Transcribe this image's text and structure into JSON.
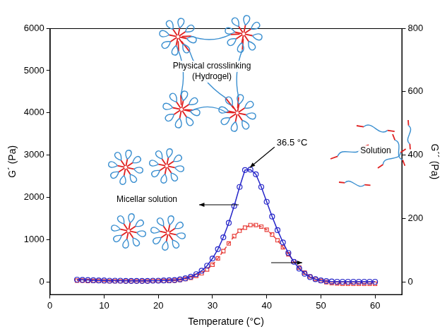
{
  "chart_data": {
    "type": "line",
    "x_label": "Temperature (°C)",
    "y_label": "G´ (Pa)",
    "y2_label": "G´´ (Pa)",
    "x": [
      5,
      6,
      7,
      8,
      9,
      10,
      11,
      12,
      13,
      14,
      15,
      16,
      17,
      18,
      19,
      20,
      21,
      22,
      23,
      24,
      25,
      26,
      27,
      28,
      29,
      30,
      31,
      32,
      33,
      34,
      35,
      36,
      37,
      38,
      39,
      40,
      41,
      42,
      43,
      44,
      45,
      46,
      47,
      48,
      49,
      50,
      51,
      52,
      53,
      54,
      55,
      56,
      57,
      58,
      59,
      60
    ],
    "xlim": [
      0,
      65
    ],
    "xticks": [
      0,
      10,
      20,
      30,
      40,
      50,
      60
    ],
    "ylim": [
      -300,
      6000
    ],
    "yticks": [
      0,
      1000,
      2000,
      3000,
      4000,
      5000,
      6000
    ],
    "y2lim": [
      -40,
      800
    ],
    "y2ticks": [
      0,
      200,
      400,
      600,
      800
    ],
    "grid": false,
    "series": [
      {
        "color": "#2626c9",
        "marker": "circle",
        "line_style": "solid",
        "values": [
          60,
          55,
          50,
          45,
          40,
          40,
          35,
          35,
          35,
          30,
          30,
          30,
          30,
          30,
          35,
          35,
          40,
          45,
          50,
          65,
          90,
          130,
          190,
          270,
          390,
          560,
          780,
          1060,
          1400,
          1800,
          2250,
          2650,
          2660,
          2550,
          2250,
          1900,
          1550,
          1230,
          940,
          690,
          480,
          320,
          200,
          120,
          70,
          40,
          25,
          15,
          10,
          10,
          10,
          10,
          10,
          10,
          10,
          10
        ]
      },
      {
        "axis": "y2",
        "color": "#e8413c",
        "marker": "square",
        "line_style": "dashed",
        "values": [
          5,
          5,
          4,
          4,
          4,
          3,
          3,
          3,
          3,
          3,
          3,
          3,
          3,
          3,
          4,
          4,
          4,
          4,
          5,
          7,
          10,
          14,
          20,
          28,
          40,
          55,
          75,
          98,
          122,
          145,
          162,
          172,
          180,
          180,
          175,
          165,
          150,
          132,
          110,
          88,
          66,
          46,
          30,
          18,
          10,
          4,
          0,
          -3,
          -4,
          -5,
          -5,
          -5,
          -5,
          -5,
          -5,
          -5
        ]
      }
    ],
    "annotations": [
      {
        "text": "36.5 °C",
        "x": 36.5
      }
    ],
    "diagram": {
      "hydrogel": "Physical crosslinking (Hydrogel)",
      "micelles": "Micellar solution",
      "solution": "Solution"
    }
  }
}
